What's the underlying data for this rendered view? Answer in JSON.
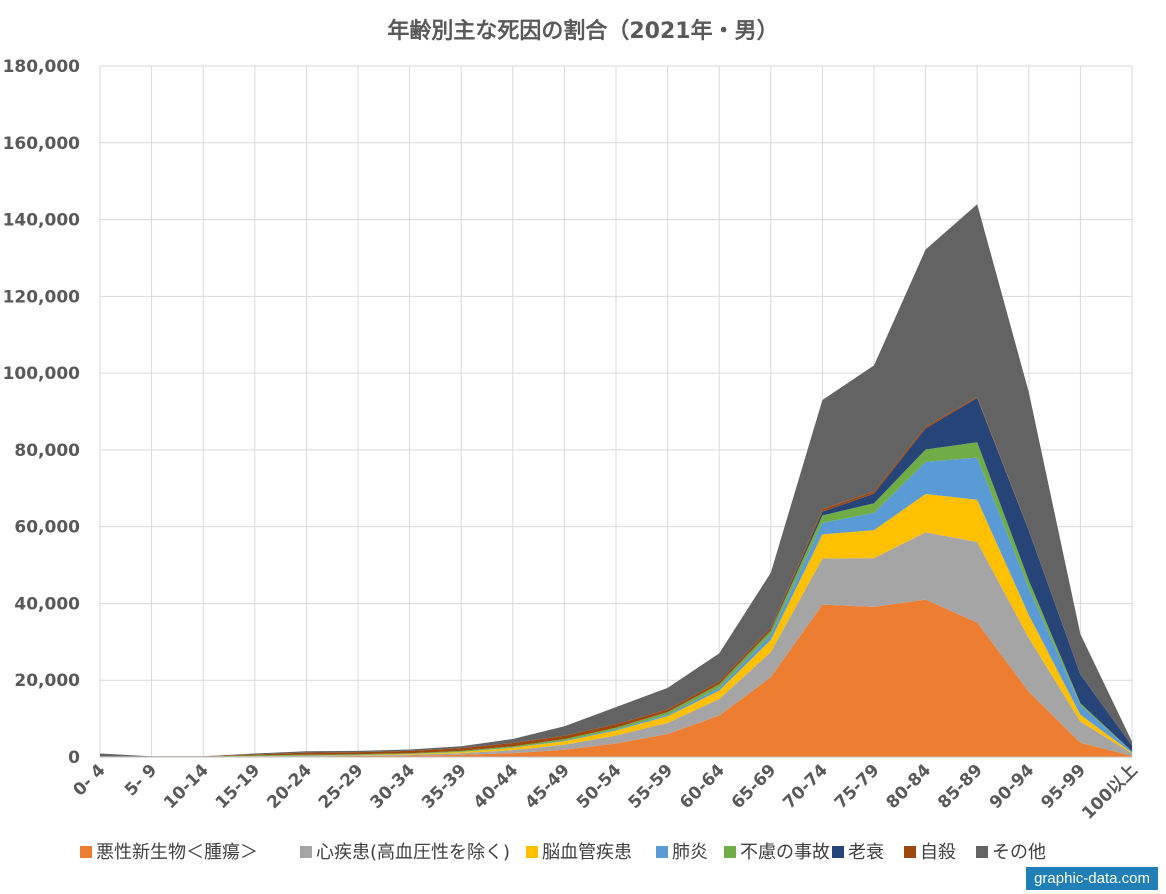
{
  "chart_data": {
    "type": "area",
    "stacked": true,
    "title": "年齢別主な死因の割合（2021年・男）",
    "categories": [
      "0- 4",
      "5- 9",
      "10-14",
      "15-19",
      "20-24",
      "25-29",
      "30-34",
      "35-39",
      "40-44",
      "45-49",
      "50-54",
      "55-59",
      "60-64",
      "65-69",
      "70-74",
      "75-79",
      "80-84",
      "85-89",
      "90-94",
      "95-99",
      "100以上"
    ],
    "ylim": [
      0,
      180000
    ],
    "yticks": [
      0,
      20000,
      40000,
      60000,
      80000,
      100000,
      120000,
      140000,
      160000,
      180000
    ],
    "ytick_labels": [
      "0",
      "20,000",
      "40,000",
      "60,000",
      "80,000",
      "100,000",
      "120,000",
      "140,000",
      "160,000",
      "180,000"
    ],
    "grid": true,
    "legend_position": "bottom",
    "series": [
      {
        "name": "悪性新生物＜腫瘍＞",
        "color": "#ed7d31",
        "values": [
          50,
          60,
          60,
          120,
          170,
          250,
          350,
          600,
          1000,
          1900,
          3500,
          6000,
          10800,
          20800,
          39700,
          39100,
          41000,
          35000,
          17000,
          3700,
          300
        ]
      },
      {
        "name": "心疾患(高血圧性を除く)",
        "color": "#a5a5a5",
        "values": [
          30,
          20,
          20,
          70,
          120,
          170,
          250,
          400,
          800,
          1300,
          2100,
          2900,
          4300,
          6500,
          12000,
          12700,
          17500,
          21000,
          14000,
          5500,
          600
        ]
      },
      {
        "name": "脳血管疾患",
        "color": "#ffc000",
        "values": [
          10,
          10,
          10,
          30,
          50,
          80,
          150,
          300,
          600,
          900,
          1300,
          1700,
          2200,
          3200,
          6300,
          7300,
          10000,
          11000,
          6000,
          1800,
          200
        ]
      },
      {
        "name": "肺炎",
        "color": "#5b9bd5",
        "values": [
          20,
          5,
          5,
          5,
          10,
          20,
          30,
          50,
          80,
          150,
          250,
          400,
          700,
          1300,
          3000,
          4500,
          8400,
          11000,
          7000,
          2500,
          300
        ]
      },
      {
        "name": "不慮の事故",
        "color": "#70ad47",
        "values": [
          50,
          50,
          50,
          200,
          250,
          200,
          200,
          250,
          300,
          400,
          500,
          650,
          900,
          1100,
          1900,
          2500,
          3200,
          4000,
          2000,
          500,
          50
        ]
      },
      {
        "name": "老衰",
        "color": "#264478",
        "values": [
          0,
          0,
          0,
          0,
          0,
          0,
          0,
          0,
          0,
          0,
          10,
          30,
          60,
          200,
          1000,
          2500,
          5500,
          11500,
          13000,
          7500,
          1500
        ]
      },
      {
        "name": "自殺",
        "color": "#9e480e",
        "values": [
          0,
          10,
          30,
          250,
          550,
          550,
          600,
          700,
          850,
          900,
          900,
          700,
          700,
          700,
          650,
          600,
          500,
          300,
          100,
          20,
          0
        ]
      },
      {
        "name": "その他",
        "color": "#636363",
        "values": [
          740,
          45,
          25,
          225,
          350,
          330,
          370,
          500,
          1070,
          2450,
          4440,
          5620,
          7340,
          14200,
          28450,
          32800,
          46100,
          50200,
          35900,
          10480,
          1050
        ]
      }
    ]
  }
}
